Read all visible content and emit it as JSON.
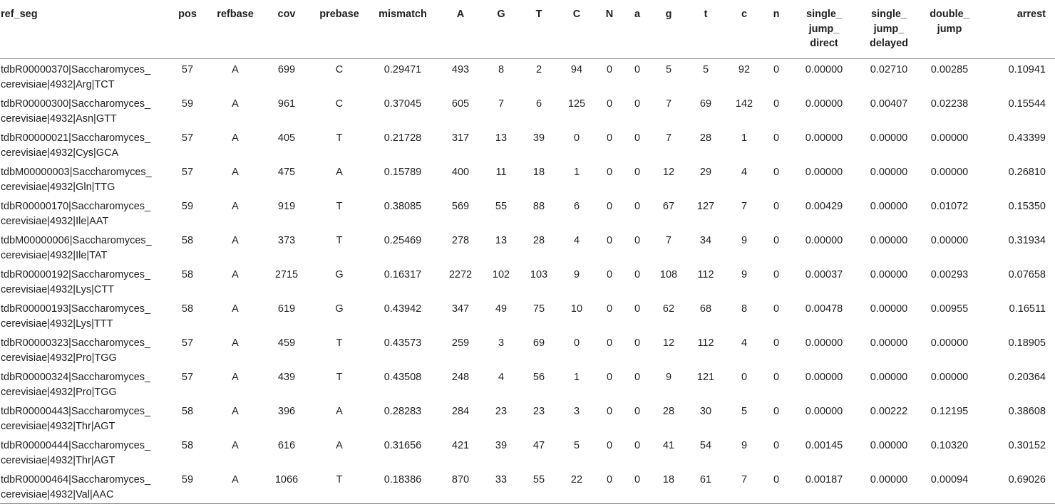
{
  "columns": [
    {
      "key": "ref_seg",
      "lines": [
        "ref_seg"
      ]
    },
    {
      "key": "pos",
      "lines": [
        "pos"
      ]
    },
    {
      "key": "refbase",
      "lines": [
        "refbase"
      ]
    },
    {
      "key": "cov",
      "lines": [
        "cov"
      ]
    },
    {
      "key": "prebase",
      "lines": [
        "prebase"
      ]
    },
    {
      "key": "mismatch",
      "lines": [
        "mismatch"
      ]
    },
    {
      "key": "A",
      "lines": [
        "A"
      ]
    },
    {
      "key": "G",
      "lines": [
        "G"
      ]
    },
    {
      "key": "T",
      "lines": [
        "T"
      ]
    },
    {
      "key": "C",
      "lines": [
        "C"
      ]
    },
    {
      "key": "N",
      "lines": [
        "N"
      ]
    },
    {
      "key": "a",
      "lines": [
        "a"
      ]
    },
    {
      "key": "g",
      "lines": [
        "g"
      ]
    },
    {
      "key": "t",
      "lines": [
        "t"
      ]
    },
    {
      "key": "c",
      "lines": [
        "c"
      ]
    },
    {
      "key": "n",
      "lines": [
        "n"
      ]
    },
    {
      "key": "single_jump_direct",
      "lines": [
        "single_",
        "jump_",
        "direct"
      ]
    },
    {
      "key": "single_jump_delayed",
      "lines": [
        "single_",
        "jump_",
        "delayed"
      ]
    },
    {
      "key": "double_jump",
      "lines": [
        "double_",
        "jump"
      ]
    },
    {
      "key": "arrest",
      "lines": [
        "arrest"
      ]
    }
  ],
  "rows": [
    {
      "ref_seg": [
        "tdbR00000370|Saccharomyces_",
        "cerevisiae|4932|Arg|TCT"
      ],
      "cells": [
        "57",
        "A",
        "699",
        "C",
        "0.29471",
        "493",
        "8",
        "2",
        "94",
        "0",
        "0",
        "5",
        "5",
        "92",
        "0",
        "0.00000",
        "0.02710",
        "0.00285",
        "0.10941"
      ]
    },
    {
      "ref_seg": [
        "tdbR00000300|Saccharomyces_",
        "cerevisiae|4932|Asn|GTT"
      ],
      "cells": [
        "59",
        "A",
        "961",
        "C",
        "0.37045",
        "605",
        "7",
        "6",
        "125",
        "0",
        "0",
        "7",
        "69",
        "142",
        "0",
        "0.00000",
        "0.00407",
        "0.02238",
        "0.15544"
      ]
    },
    {
      "ref_seg": [
        "tdbR00000021|Saccharomyces_",
        "cerevisiae|4932|Cys|GCA"
      ],
      "cells": [
        "57",
        "A",
        "405",
        "T",
        "0.21728",
        "317",
        "13",
        "39",
        "0",
        "0",
        "0",
        "7",
        "28",
        "1",
        "0",
        "0.00000",
        "0.00000",
        "0.00000",
        "0.43399"
      ]
    },
    {
      "ref_seg": [
        "tdbM00000003|Saccharomyces_",
        "cerevisiae|4932|Gln|TTG"
      ],
      "cells": [
        "57",
        "A",
        "475",
        "A",
        "0.15789",
        "400",
        "11",
        "18",
        "1",
        "0",
        "0",
        "12",
        "29",
        "4",
        "0",
        "0.00000",
        "0.00000",
        "0.00000",
        "0.26810"
      ]
    },
    {
      "ref_seg": [
        "tdbR00000170|Saccharomyces_",
        "cerevisiae|4932|Ile|AAT"
      ],
      "cells": [
        "59",
        "A",
        "919",
        "T",
        "0.38085",
        "569",
        "55",
        "88",
        "6",
        "0",
        "0",
        "67",
        "127",
        "7",
        "0",
        "0.00429",
        "0.00000",
        "0.01072",
        "0.15350"
      ]
    },
    {
      "ref_seg": [
        "tdbM00000006|Saccharomyces_",
        "cerevisiae|4932|Ile|TAT"
      ],
      "cells": [
        "58",
        "A",
        "373",
        "T",
        "0.25469",
        "278",
        "13",
        "28",
        "4",
        "0",
        "0",
        "7",
        "34",
        "9",
        "0",
        "0.00000",
        "0.00000",
        "0.00000",
        "0.31934"
      ]
    },
    {
      "ref_seg": [
        "tdbR00000192|Saccharomyces_",
        "cerevisiae|4932|Lys|CTT"
      ],
      "cells": [
        "58",
        "A",
        "2715",
        "G",
        "0.16317",
        "2272",
        "102",
        "103",
        "9",
        "0",
        "0",
        "108",
        "112",
        "9",
        "0",
        "0.00037",
        "0.00000",
        "0.00293",
        "0.07658"
      ]
    },
    {
      "ref_seg": [
        "tdbR00000193|Saccharomyces_",
        "cerevisiae|4932|Lys|TTT"
      ],
      "cells": [
        "58",
        "A",
        "619",
        "G",
        "0.43942",
        "347",
        "49",
        "75",
        "10",
        "0",
        "0",
        "62",
        "68",
        "8",
        "0",
        "0.00478",
        "0.00000",
        "0.00955",
        "0.16511"
      ]
    },
    {
      "ref_seg": [
        "tdbR00000323|Saccharomyces_",
        "cerevisiae|4932|Pro|TGG"
      ],
      "cells": [
        "57",
        "A",
        "459",
        "T",
        "0.43573",
        "259",
        "3",
        "69",
        "0",
        "0",
        "0",
        "12",
        "112",
        "4",
        "0",
        "0.00000",
        "0.00000",
        "0.00000",
        "0.18905"
      ]
    },
    {
      "ref_seg": [
        "tdbR00000324|Saccharomyces_",
        "cerevisiae|4932|Pro|TGG"
      ],
      "cells": [
        "57",
        "A",
        "439",
        "T",
        "0.43508",
        "248",
        "4",
        "56",
        "1",
        "0",
        "0",
        "9",
        "121",
        "0",
        "0",
        "0.00000",
        "0.00000",
        "0.00000",
        "0.20364"
      ]
    },
    {
      "ref_seg": [
        "tdbR00000443|Saccharomyces_",
        "cerevisiae|4932|Thr|AGT"
      ],
      "cells": [
        "58",
        "A",
        "396",
        "A",
        "0.28283",
        "284",
        "23",
        "23",
        "3",
        "0",
        "0",
        "28",
        "30",
        "5",
        "0",
        "0.00000",
        "0.00222",
        "0.12195",
        "0.38608"
      ]
    },
    {
      "ref_seg": [
        "tdbR00000444|Saccharomyces_",
        "cerevisiae|4932|Thr|AGT"
      ],
      "cells": [
        "58",
        "A",
        "616",
        "A",
        "0.31656",
        "421",
        "39",
        "47",
        "5",
        "0",
        "0",
        "41",
        "54",
        "9",
        "0",
        "0.00145",
        "0.00000",
        "0.10320",
        "0.30152"
      ]
    },
    {
      "ref_seg": [
        "tdbR00000464|Saccharomyces_",
        "cerevisiae|4932|Val|AAC"
      ],
      "cells": [
        "59",
        "A",
        "1066",
        "T",
        "0.18386",
        "870",
        "33",
        "55",
        "22",
        "0",
        "0",
        "18",
        "61",
        "7",
        "0",
        "0.00187",
        "0.00000",
        "0.00094",
        "0.69026"
      ]
    }
  ]
}
